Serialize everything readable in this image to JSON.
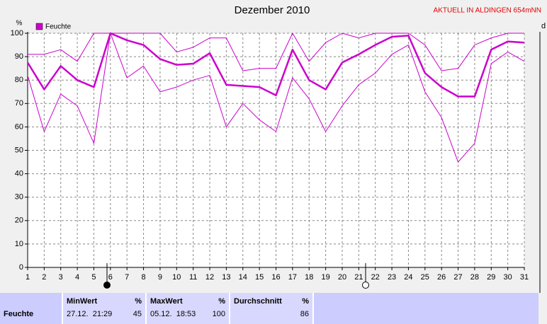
{
  "chart_data": {
    "type": "line",
    "title": "Dezember 2010",
    "header_note": "AKTUELL IN ALDINGEN 654mNN",
    "y_unit": "%",
    "x_unit": "d",
    "x": [
      1,
      2,
      3,
      4,
      5,
      6,
      7,
      8,
      9,
      10,
      11,
      12,
      13,
      14,
      15,
      16,
      17,
      18,
      19,
      20,
      21,
      22,
      23,
      24,
      25,
      26,
      27,
      28,
      29,
      30,
      31
    ],
    "xlim": [
      1,
      31
    ],
    "xticks": [
      1,
      2,
      3,
      4,
      5,
      6,
      7,
      8,
      9,
      10,
      11,
      12,
      13,
      14,
      15,
      16,
      17,
      18,
      19,
      20,
      21,
      22,
      23,
      24,
      25,
      26,
      27,
      28,
      29,
      30,
      31
    ],
    "ylim": [
      0,
      100
    ],
    "yticks": [
      0,
      10,
      20,
      30,
      40,
      50,
      60,
      70,
      80,
      90,
      100
    ],
    "grid": true,
    "legend": "top-left",
    "series": [
      {
        "name": "Feuchte",
        "color": "#cc00cc",
        "width": 2.5,
        "values": [
          87.5,
          76,
          86,
          80,
          77,
          100,
          97,
          95,
          89,
          86.5,
          87,
          91.5,
          78,
          77.5,
          77,
          73.5,
          93,
          80,
          76,
          87.5,
          91,
          95,
          98.5,
          99,
          83,
          77,
          73,
          73,
          93,
          96.5,
          96
        ]
      },
      {
        "color": "#cc00cc",
        "width": 1,
        "values": [
          91,
          91,
          93,
          88,
          100,
          100,
          100,
          100,
          100,
          92,
          94,
          98,
          98,
          84,
          85,
          85,
          100,
          88,
          96,
          100,
          98,
          100,
          100,
          100,
          95,
          84,
          85,
          95,
          98,
          100,
          100
        ]
      },
      {
        "color": "#cc00cc",
        "width": 1,
        "values": [
          82,
          58,
          74,
          69,
          53,
          100,
          81,
          86,
          75,
          77,
          80,
          82,
          60,
          70,
          63,
          58,
          81,
          72,
          58,
          69,
          78,
          83,
          91,
          95,
          75,
          64,
          45,
          53,
          87,
          92,
          88
        ]
      }
    ]
  },
  "table": {
    "row_label": "Feuchte",
    "columns": [
      {
        "header": "MinWert",
        "unit": "%",
        "time": "27.12.  21:29",
        "value": 45
      },
      {
        "header": "MaxWert",
        "unit": "%",
        "time": "05.12.  18:53",
        "value": 100
      },
      {
        "header": "Durchschnitt",
        "unit": "%",
        "value": 86
      }
    ]
  }
}
